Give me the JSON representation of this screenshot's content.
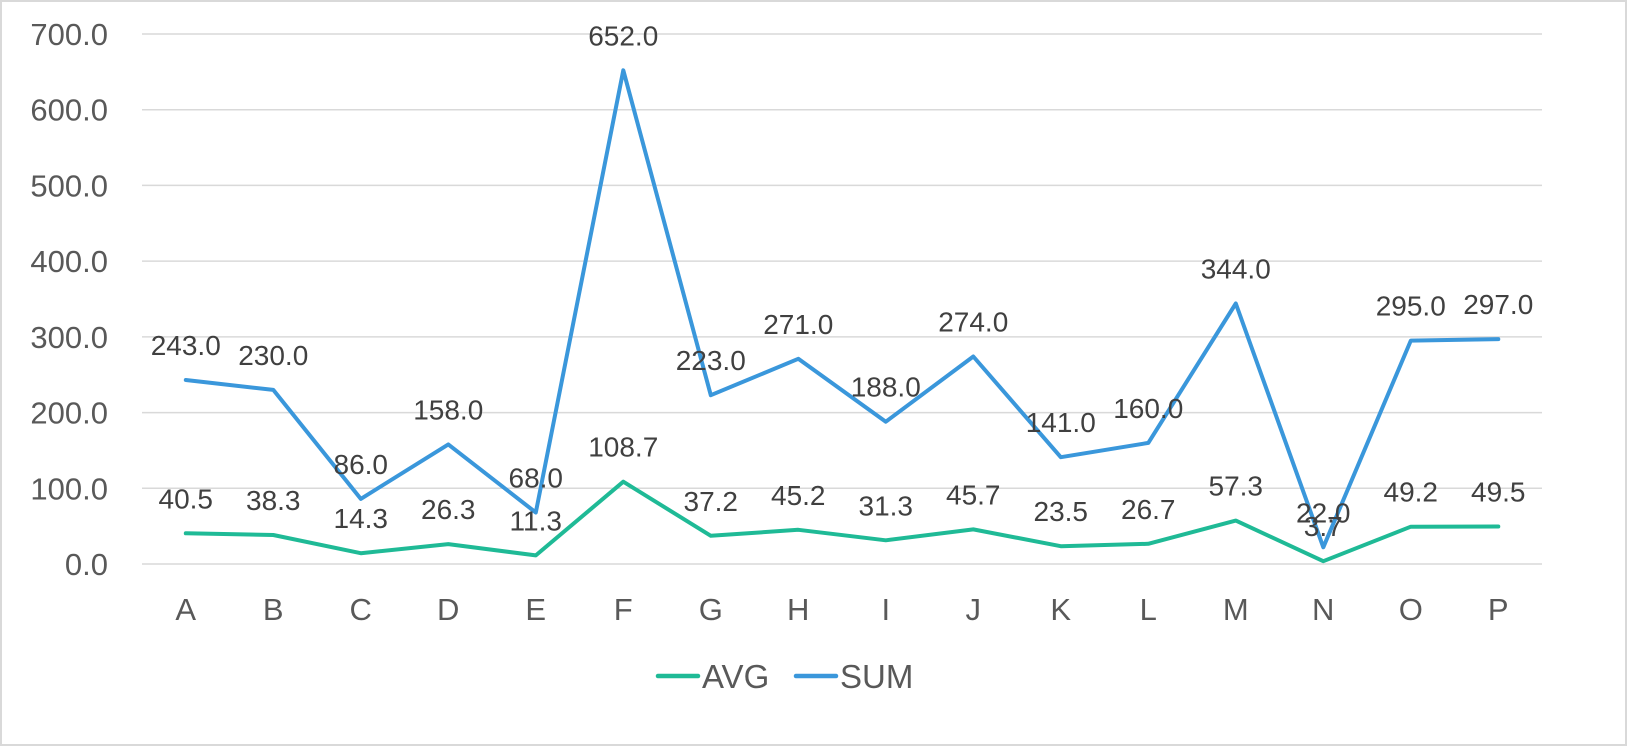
{
  "chart_data": {
    "type": "line",
    "title": "",
    "xlabel": "",
    "ylabel": "",
    "categories": [
      "A",
      "B",
      "C",
      "D",
      "E",
      "F",
      "G",
      "H",
      "I",
      "J",
      "K",
      "L",
      "M",
      "N",
      "O",
      "P"
    ],
    "ylim": [
      0,
      700
    ],
    "y_ticks": [
      "0.0",
      "100.0",
      "200.0",
      "300.0",
      "400.0",
      "500.0",
      "600.0",
      "700.0"
    ],
    "grid": true,
    "legend_position": "bottom",
    "series": [
      {
        "name": "AVG",
        "color": "#1fba96",
        "values": [
          40.5,
          38.3,
          14.3,
          26.3,
          11.3,
          108.7,
          37.2,
          45.2,
          31.3,
          45.7,
          23.5,
          26.7,
          57.3,
          3.7,
          49.2,
          49.5
        ],
        "labels": [
          "40.5",
          "38.3",
          "14.3",
          "26.3",
          "11.3",
          "108.7",
          "37.2",
          "45.2",
          "31.3",
          "45.7",
          "23.5",
          "26.7",
          "57.3",
          "3.7",
          "49.2",
          "49.5"
        ]
      },
      {
        "name": "SUM",
        "color": "#3a97db",
        "values": [
          243.0,
          230.0,
          86.0,
          158.0,
          68.0,
          652.0,
          223.0,
          271.0,
          188.0,
          274.0,
          141.0,
          160.0,
          344.0,
          22.0,
          295.0,
          297.0
        ],
        "labels": [
          "243.0",
          "230.0",
          "86.0",
          "158.0",
          "68.0",
          "652.0",
          "223.0",
          "271.0",
          "188.0",
          "274.0",
          "141.0",
          "160.0",
          "344.0",
          "22.0",
          "295.0",
          "297.0"
        ]
      }
    ]
  }
}
